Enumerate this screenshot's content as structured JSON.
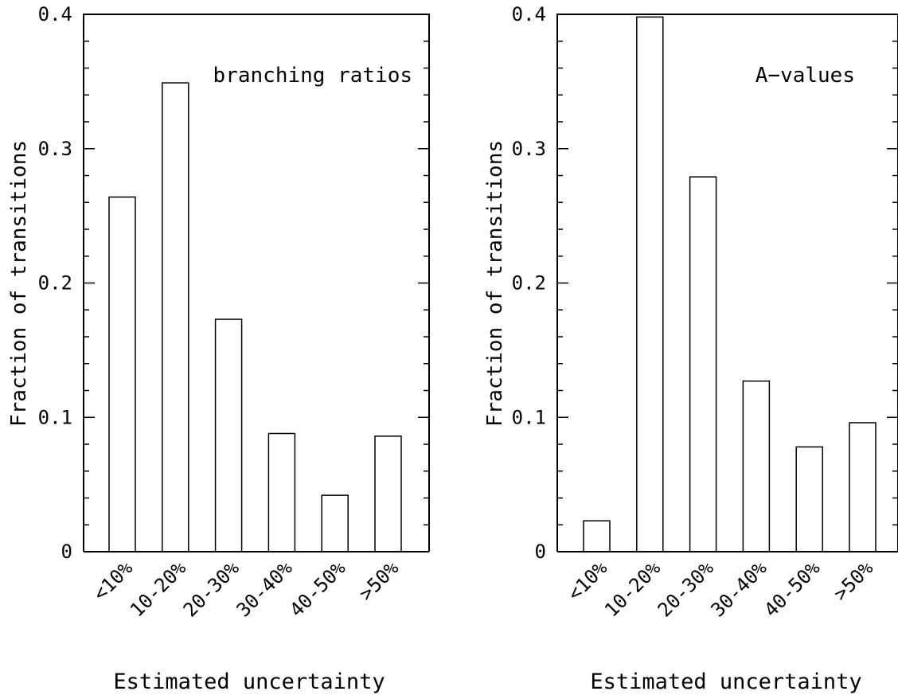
{
  "chart_data": [
    {
      "type": "bar",
      "annotation": "branching ratios",
      "xlabel": "Estimated uncertainty",
      "ylabel": "Fraction of transitions",
      "categories": [
        "<10%",
        "10-20%",
        "20-30%",
        "30-40%",
        "40-50%",
        ">50%"
      ],
      "values": [
        0.264,
        0.349,
        0.173,
        0.088,
        0.042,
        0.086
      ],
      "ylim": [
        0,
        0.4
      ],
      "yticks": [
        "0",
        "0.1",
        "0.2",
        "0.3",
        "0.4"
      ],
      "grid": false,
      "legend": "none"
    },
    {
      "type": "bar",
      "annotation": "A−values",
      "xlabel": "Estimated uncertainty",
      "ylabel": "Fraction of transitions",
      "categories": [
        "<10%",
        "10-20%",
        "20-30%",
        "30-40%",
        "40-50%",
        ">50%"
      ],
      "values": [
        0.023,
        0.398,
        0.279,
        0.127,
        0.078,
        0.096
      ],
      "ylim": [
        0,
        0.4
      ],
      "yticks": [
        "0",
        "0.1",
        "0.2",
        "0.3",
        "0.4"
      ],
      "grid": false,
      "legend": "none"
    }
  ]
}
